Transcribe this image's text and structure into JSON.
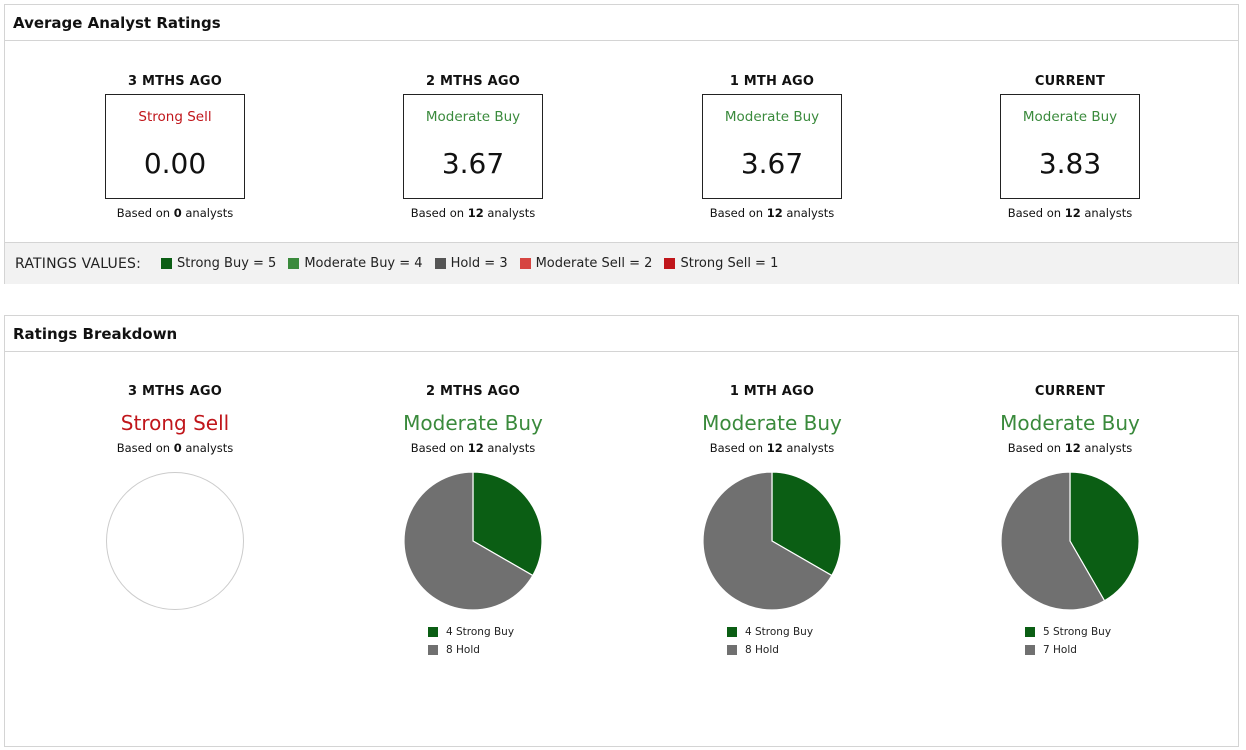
{
  "colors": {
    "strong_buy": "#0b5e14",
    "moderate_buy": "#3a8a3c",
    "hold": "#707070",
    "moderate_sell": "#d64541",
    "strong_sell": "#c0161b",
    "text_strong_sell": "#c0161b",
    "text_moderate_buy": "#3a8a3c"
  },
  "avg": {
    "title": "Average Analyst Ratings",
    "based_prefix": "Based on ",
    "based_suffix": " analysts",
    "periods": [
      {
        "label": "3 MTHS AGO",
        "rating": "Strong Sell",
        "rating_color": "#c0161b",
        "value": "0.00",
        "analysts": "0"
      },
      {
        "label": "2 MTHS AGO",
        "rating": "Moderate Buy",
        "rating_color": "#3a8a3c",
        "value": "3.67",
        "analysts": "12"
      },
      {
        "label": "1 MTH AGO",
        "rating": "Moderate Buy",
        "rating_color": "#3a8a3c",
        "value": "3.67",
        "analysts": "12"
      },
      {
        "label": "CURRENT",
        "rating": "Moderate Buy",
        "rating_color": "#3a8a3c",
        "value": "3.83",
        "analysts": "12"
      }
    ],
    "legend_title": "RATINGS VALUES:",
    "legend": [
      {
        "label": "Strong Buy = 5",
        "color": "#0b5e14"
      },
      {
        "label": "Moderate Buy = 4",
        "color": "#3a8a3c"
      },
      {
        "label": "Hold = 3",
        "color": "#555555"
      },
      {
        "label": "Moderate Sell = 2",
        "color": "#d64541"
      },
      {
        "label": "Strong Sell = 1",
        "color": "#c0161b"
      }
    ]
  },
  "breakdown": {
    "title": "Ratings Breakdown"
  },
  "chart_data": [
    {
      "type": "pie",
      "title": "3 MTHS AGO",
      "subtitle": "Strong Sell",
      "analysts": "0",
      "labels": [],
      "values": [],
      "legend": []
    },
    {
      "type": "pie",
      "title": "2 MTHS AGO",
      "subtitle": "Moderate Buy",
      "analysts": "12",
      "labels": [
        "Strong Buy",
        "Hold"
      ],
      "values": [
        4,
        8
      ],
      "colors": [
        "#0b5e14",
        "#707070"
      ],
      "legend": [
        "4 Strong Buy",
        "8 Hold"
      ]
    },
    {
      "type": "pie",
      "title": "1 MTH AGO",
      "subtitle": "Moderate Buy",
      "analysts": "12",
      "labels": [
        "Strong Buy",
        "Hold"
      ],
      "values": [
        4,
        8
      ],
      "colors": [
        "#0b5e14",
        "#707070"
      ],
      "legend": [
        "4 Strong Buy",
        "8 Hold"
      ]
    },
    {
      "type": "pie",
      "title": "CURRENT",
      "subtitle": "Moderate Buy",
      "analysts": "12",
      "labels": [
        "Strong Buy",
        "Hold"
      ],
      "values": [
        5,
        7
      ],
      "colors": [
        "#0b5e14",
        "#707070"
      ],
      "legend": [
        "5 Strong Buy",
        "7 Hold"
      ]
    }
  ]
}
